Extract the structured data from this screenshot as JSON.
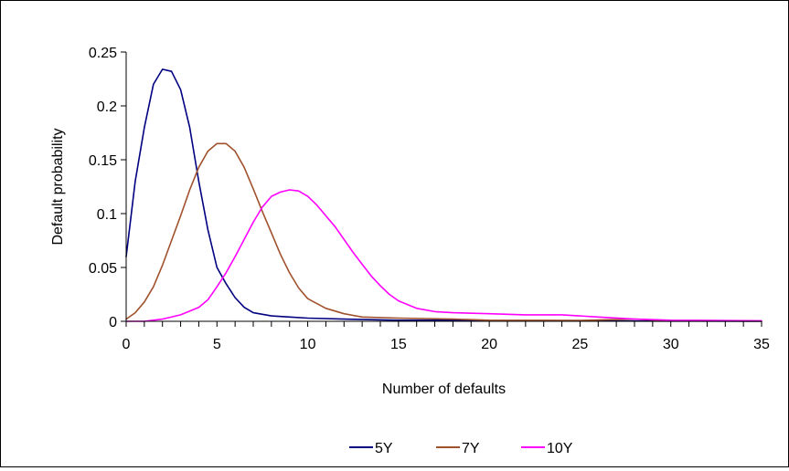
{
  "chart_data": {
    "type": "line",
    "title": "",
    "xlabel": "Number of defaults",
    "ylabel": "Default probability",
    "xlim": [
      0,
      35
    ],
    "ylim": [
      0,
      0.25
    ],
    "x_ticks": [
      0,
      5,
      10,
      15,
      20,
      25,
      30,
      35
    ],
    "y_ticks": [
      0,
      0.05,
      0.1,
      0.15,
      0.2,
      0.25
    ],
    "x_tick_labels": [
      "0",
      "5",
      "10",
      "15",
      "20",
      "25",
      "30",
      "35"
    ],
    "y_tick_labels": [
      "0",
      "0.05",
      "0.1",
      "0.15",
      "0.2",
      "0.25"
    ],
    "grid": false,
    "legend_position": "bottom",
    "series": [
      {
        "name": "5Y",
        "color": "#000080",
        "points": [
          [
            0,
            0.06
          ],
          [
            0.5,
            0.13
          ],
          [
            1,
            0.18
          ],
          [
            1.5,
            0.22
          ],
          [
            2,
            0.234
          ],
          [
            2.5,
            0.232
          ],
          [
            3,
            0.215
          ],
          [
            3.5,
            0.18
          ],
          [
            4,
            0.13
          ],
          [
            4.5,
            0.085
          ],
          [
            5,
            0.05
          ],
          [
            5.5,
            0.035
          ],
          [
            6,
            0.022
          ],
          [
            6.5,
            0.013
          ],
          [
            7,
            0.008
          ],
          [
            8,
            0.005
          ],
          [
            9,
            0.004
          ],
          [
            10,
            0.003
          ],
          [
            12,
            0.002
          ],
          [
            15,
            0.001
          ],
          [
            18,
            0.001
          ],
          [
            20,
            0.0005
          ],
          [
            25,
            0.0003
          ],
          [
            30,
            0.0002
          ],
          [
            35,
            0.0001
          ]
        ]
      },
      {
        "name": "7Y",
        "color": "#a0522d",
        "points": [
          [
            0,
            0.002
          ],
          [
            0.5,
            0.008
          ],
          [
            1,
            0.018
          ],
          [
            1.5,
            0.032
          ],
          [
            2,
            0.052
          ],
          [
            2.5,
            0.075
          ],
          [
            3,
            0.098
          ],
          [
            3.5,
            0.122
          ],
          [
            4,
            0.143
          ],
          [
            4.5,
            0.158
          ],
          [
            5,
            0.165
          ],
          [
            5.5,
            0.165
          ],
          [
            6,
            0.158
          ],
          [
            6.5,
            0.143
          ],
          [
            7,
            0.123
          ],
          [
            7.5,
            0.102
          ],
          [
            8,
            0.082
          ],
          [
            8.5,
            0.062
          ],
          [
            9,
            0.045
          ],
          [
            9.5,
            0.031
          ],
          [
            10,
            0.021
          ],
          [
            11,
            0.012
          ],
          [
            12,
            0.007
          ],
          [
            13,
            0.004
          ],
          [
            15,
            0.003
          ],
          [
            18,
            0.002
          ],
          [
            20,
            0.001
          ],
          [
            25,
            0.0008
          ],
          [
            28,
            0.002
          ],
          [
            30,
            0.0005
          ],
          [
            35,
            0.0002
          ]
        ]
      },
      {
        "name": "10Y",
        "color": "#ff00ff",
        "points": [
          [
            0,
            0
          ],
          [
            1,
            0
          ],
          [
            2,
            0.002
          ],
          [
            3,
            0.006
          ],
          [
            4,
            0.013
          ],
          [
            4.5,
            0.02
          ],
          [
            5,
            0.032
          ],
          [
            5.5,
            0.045
          ],
          [
            6,
            0.06
          ],
          [
            6.5,
            0.076
          ],
          [
            7,
            0.092
          ],
          [
            7.5,
            0.106
          ],
          [
            8,
            0.116
          ],
          [
            8.5,
            0.12
          ],
          [
            9,
            0.122
          ],
          [
            9.5,
            0.121
          ],
          [
            10,
            0.116
          ],
          [
            10.5,
            0.108
          ],
          [
            11,
            0.098
          ],
          [
            11.5,
            0.088
          ],
          [
            12,
            0.076
          ],
          [
            12.5,
            0.064
          ],
          [
            13,
            0.053
          ],
          [
            13.5,
            0.042
          ],
          [
            14,
            0.033
          ],
          [
            14.5,
            0.025
          ],
          [
            15,
            0.019
          ],
          [
            16,
            0.012
          ],
          [
            17,
            0.009
          ],
          [
            18,
            0.008
          ],
          [
            20,
            0.007
          ],
          [
            22,
            0.006
          ],
          [
            24,
            0.006
          ],
          [
            26,
            0.004
          ],
          [
            28,
            0.002
          ],
          [
            30,
            0.001
          ],
          [
            35,
            0.0005
          ]
        ]
      }
    ]
  }
}
